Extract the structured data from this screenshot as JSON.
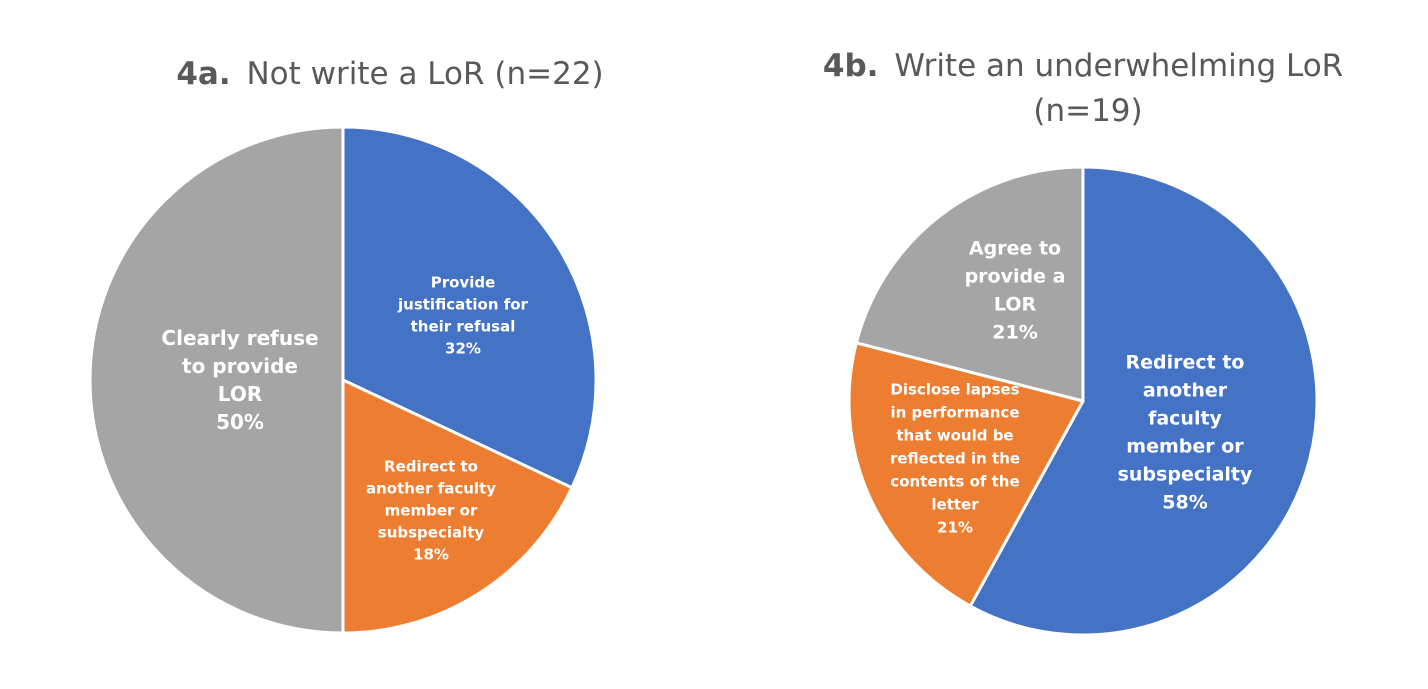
{
  "colors": {
    "blue": "#4472C4",
    "orange": "#ED7D31",
    "gray": "#A5A5A5",
    "title": "#595959",
    "label": "#FFFFFF",
    "border": "#FFFFFF"
  },
  "chart_data": [
    {
      "type": "pie",
      "title_prefix": "4a.",
      "title": "Not write a LoR (n=22)",
      "title_lines": [],
      "slices": [
        {
          "label_lines": [
            "Provide",
            "justification for",
            "their refusal"
          ],
          "value": 32,
          "value_label": "32%",
          "color": "blue"
        },
        {
          "label_lines": [
            "Redirect to",
            "another faculty",
            "member or",
            "subspecialty"
          ],
          "value": 18,
          "value_label": "18%",
          "color": "orange"
        },
        {
          "label_lines": [
            "Clearly refuse",
            "to provide",
            "LOR"
          ],
          "value": 50,
          "value_label": "50%",
          "color": "gray"
        }
      ]
    },
    {
      "type": "pie",
      "title_prefix": "4b.",
      "title": "Write an underwhelming LoR (n=19)",
      "title_lines": [
        "Write an underwhelming LoR",
        "(n=19)"
      ],
      "slices": [
        {
          "label_lines": [
            "Redirect to",
            "another",
            "faculty",
            "member or",
            "subspecialty"
          ],
          "value": 58,
          "value_label": "58%",
          "color": "blue"
        },
        {
          "label_lines": [
            "Disclose lapses",
            "in performance",
            "that would be",
            "reflected in the",
            "contents of the",
            "letter"
          ],
          "value": 21,
          "value_label": "21%",
          "color": "orange"
        },
        {
          "label_lines": [
            "Agree to",
            "provide a",
            "LOR"
          ],
          "value": 21,
          "value_label": "21%",
          "color": "gray"
        }
      ]
    }
  ]
}
